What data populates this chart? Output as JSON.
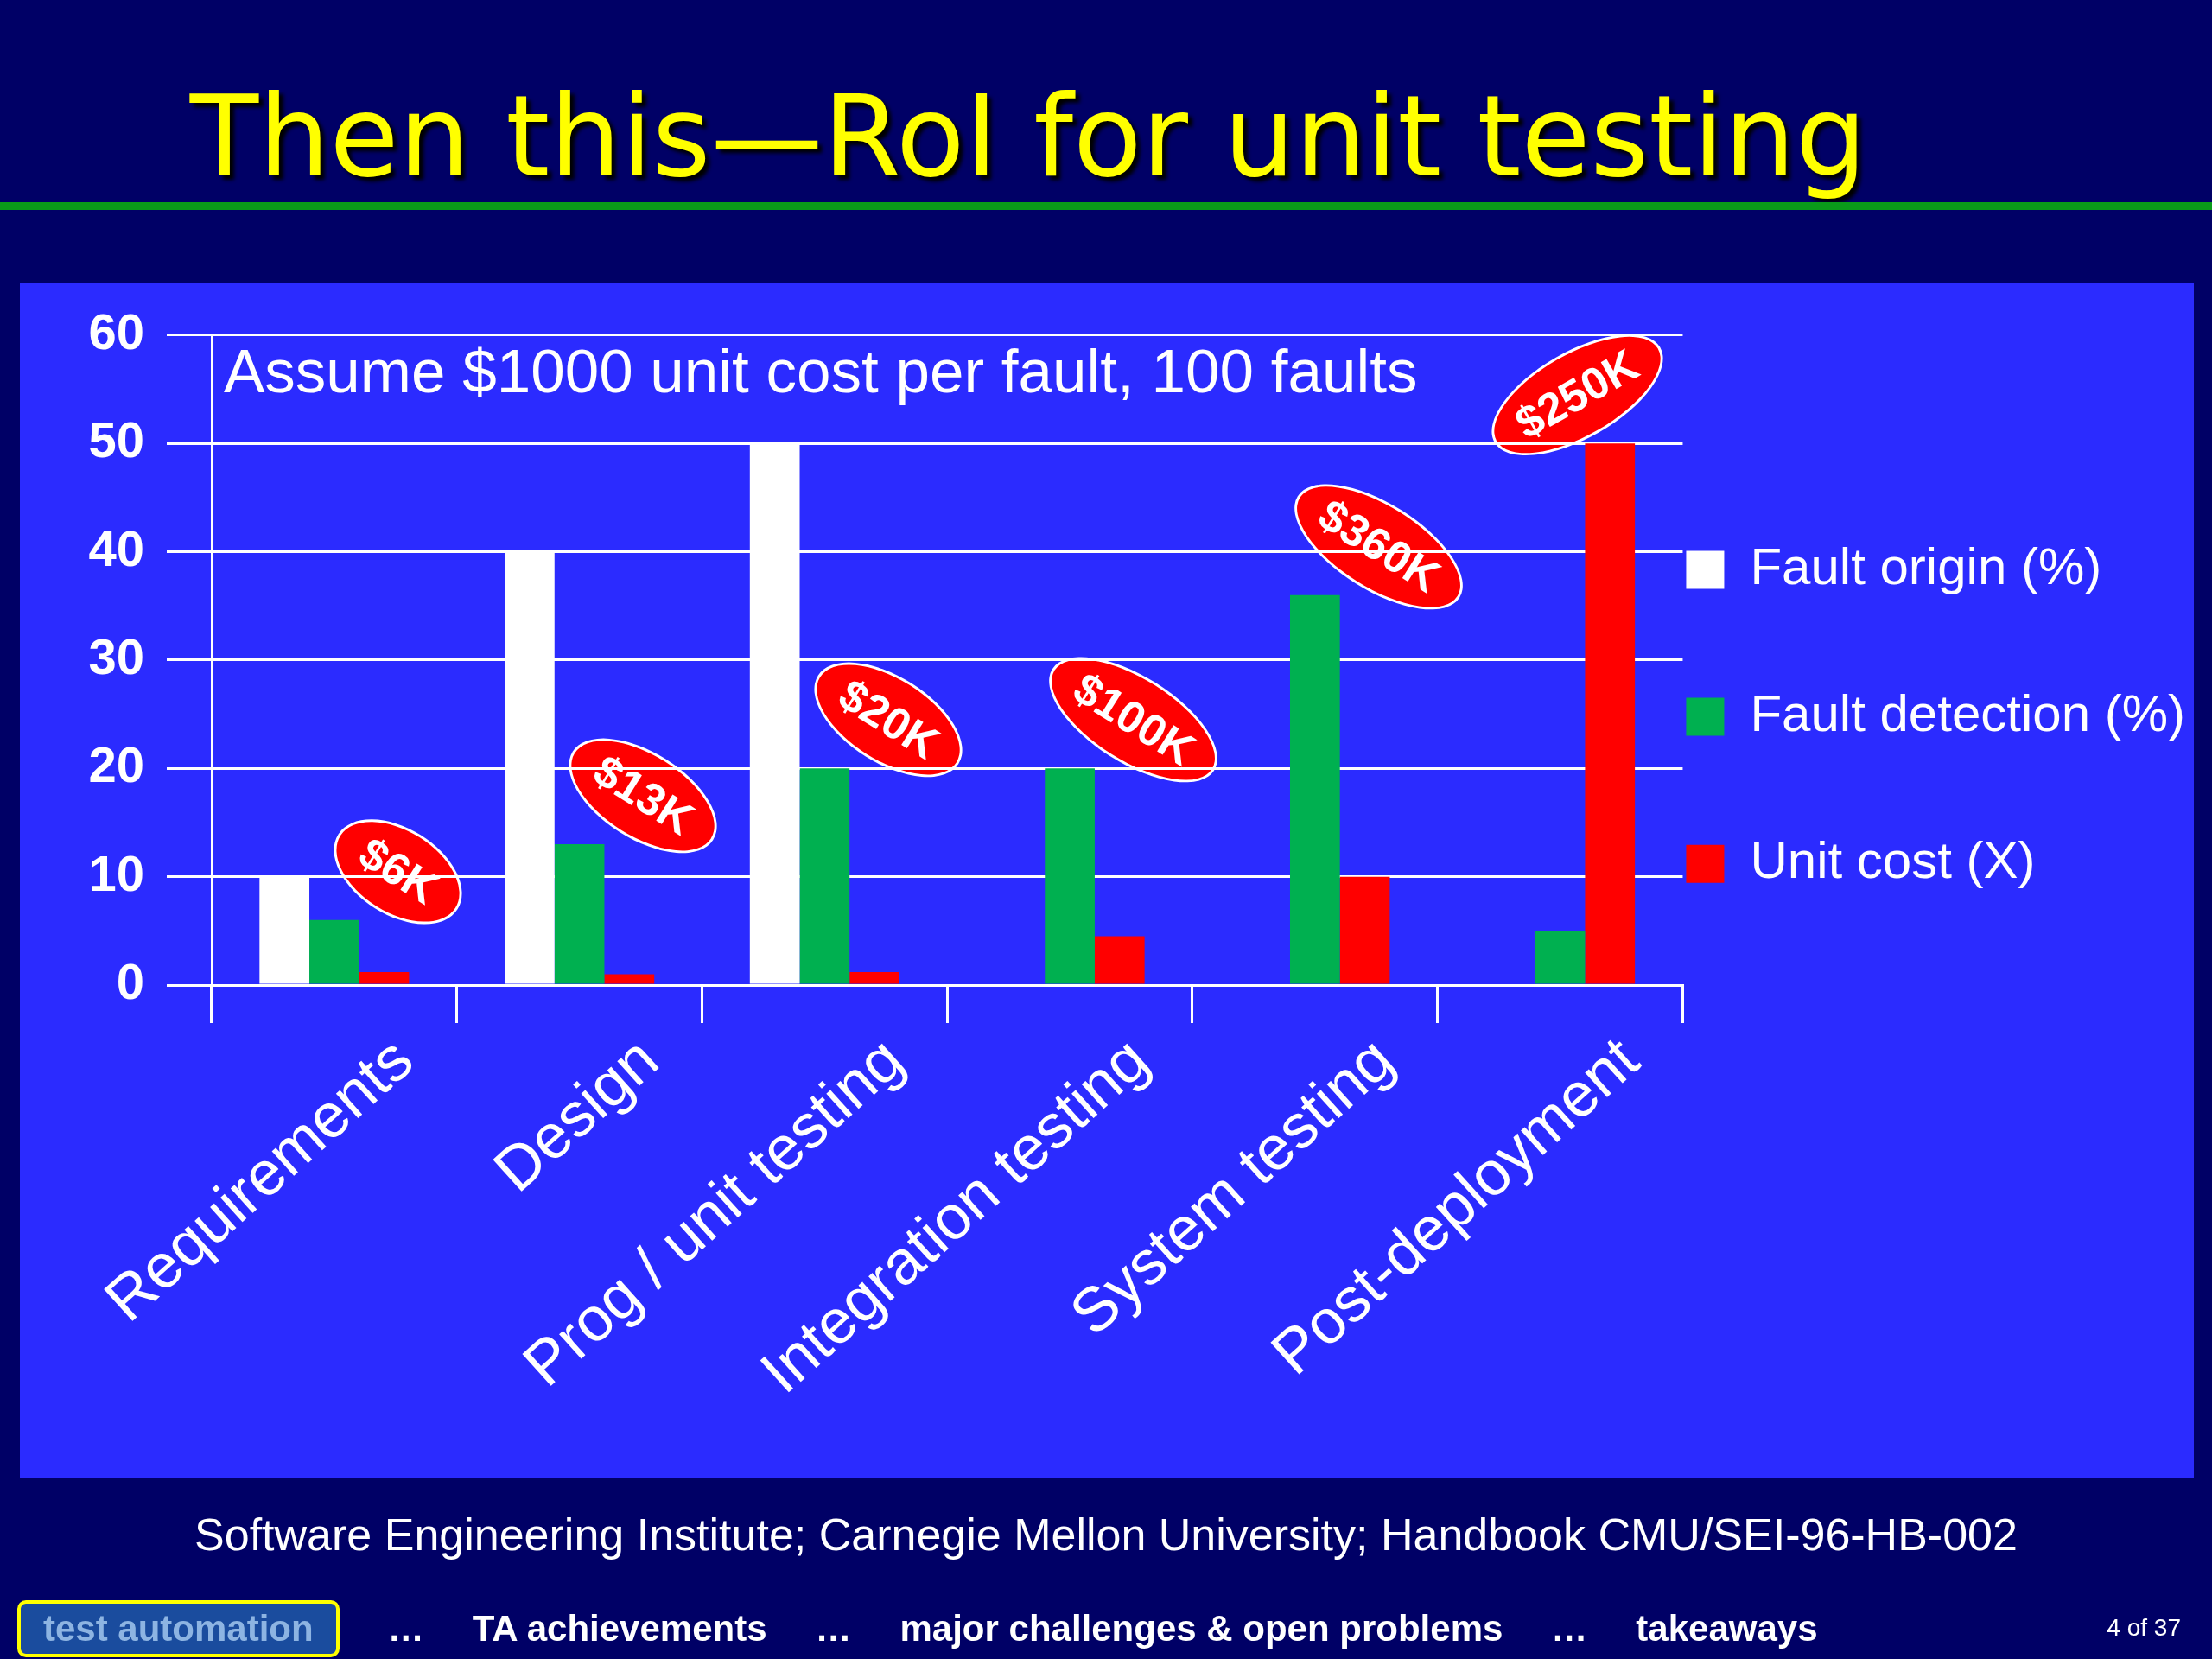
{
  "chart_data": {
    "type": "bar",
    "title": "Then this—RoI for unit testing",
    "categories": [
      "Requirements",
      "Design",
      "Prog / unit testing",
      "Integration testing",
      "System testing",
      "Post-deployment"
    ],
    "series": [
      {
        "name": "Fault origin (%)",
        "color": "#ffffff",
        "values": [
          10,
          40,
          50,
          null,
          null,
          null
        ]
      },
      {
        "name": "Fault detection (%)",
        "color": "#00b050",
        "values": [
          6,
          13,
          20,
          20,
          36,
          5
        ]
      },
      {
        "name": "Unit cost (X)",
        "color": "#ff0000",
        "values": [
          1.2,
          1,
          1.2,
          4.5,
          10,
          50
        ]
      }
    ],
    "ylim": [
      0,
      60
    ],
    "yticks": [
      0,
      10,
      20,
      30,
      40,
      50,
      60
    ],
    "grid": "y",
    "legend": "right",
    "annotations": [
      "$6K",
      "$13K",
      "$20K",
      "$100K",
      "$360K",
      "$250K",
      "Assume $1000 unit cost per fault, 100 faults",
      "Software Engineering Institute; Carnegie Mellon University; Handbook CMU/SEI-96-HB-002",
      "test automation",
      "…",
      "TA achievements",
      "…",
      "major challenges & open problems",
      "…",
      "takeaways",
      "4 of 37"
    ]
  }
}
